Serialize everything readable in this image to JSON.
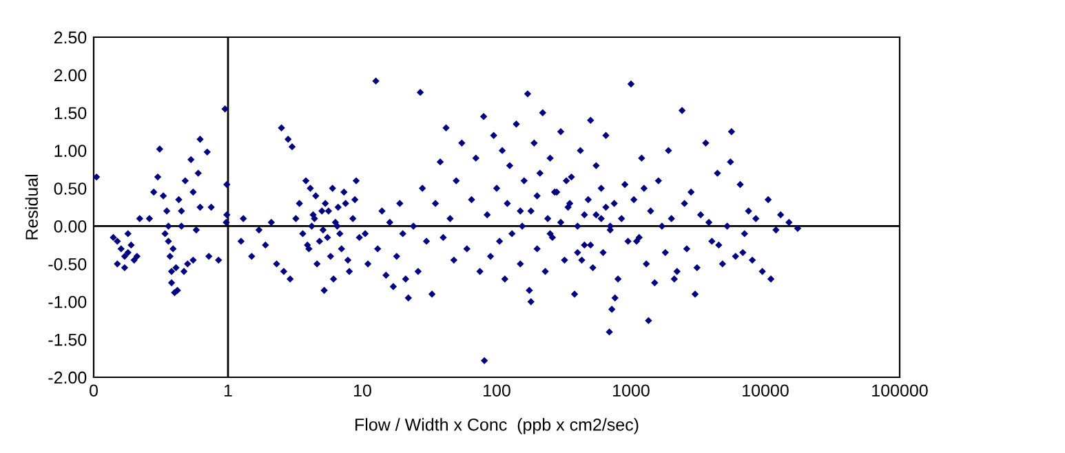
{
  "chart_data": {
    "type": "scatter",
    "xlabel": "Flow / Width x Conc  (ppb x cm2/sec)",
    "ylabel": "Residual",
    "log": "x",
    "xlim": [
      0.1,
      100000
    ],
    "xticks": [
      {
        "value": 0.1,
        "label": "0"
      },
      1,
      10,
      100,
      1000,
      10000,
      100000
    ],
    "ylim": [
      -2.0,
      2.5
    ],
    "yticks": [
      {
        "value": -2.0,
        "label": "-2.00"
      },
      {
        "value": -1.5,
        "label": "-1.50"
      },
      {
        "value": -1.0,
        "label": "-1.00"
      },
      {
        "value": -0.5,
        "label": "-0.50"
      },
      {
        "value": 0.0,
        "label": "0.00"
      },
      {
        "value": 0.5,
        "label": "0.50"
      },
      {
        "value": 1.0,
        "label": "1.00"
      },
      {
        "value": 1.5,
        "label": "1.50"
      },
      {
        "value": 2.0,
        "label": "2.00"
      },
      {
        "value": 2.5,
        "label": "2.50"
      }
    ],
    "grid": false,
    "legend": false,
    "marker": "diamond",
    "ref_lines": [
      {
        "axis": "x",
        "value": 1,
        "color": "#000000"
      },
      {
        "axis": "y",
        "value": 0,
        "color": "#000000"
      }
    ],
    "series": [
      {
        "color": "#000080",
        "x": [
          0.105,
          0.14,
          0.15,
          0.16,
          0.17,
          0.17,
          0.18,
          0.18,
          0.19,
          0.2,
          0.21,
          0.15,
          0.22,
          0.26,
          0.28,
          0.3,
          0.31,
          0.33,
          0.35,
          0.36,
          0.36,
          0.37,
          0.38,
          0.38,
          0.4,
          0.42,
          0.41,
          0.39,
          0.34,
          0.43,
          0.45,
          0.47,
          0.5,
          0.45,
          0.48,
          0.53,
          0.55,
          0.6,
          0.62,
          0.7,
          0.62,
          0.58,
          0.55,
          0.72,
          0.75,
          0.95,
          0.98,
          0.98,
          0.97,
          0.85,
          1.25,
          1.3,
          1.5,
          1.7,
          1.9,
          2.1,
          2.3,
          2.5,
          2.8,
          3.0,
          2.6,
          2.9,
          3.2,
          3.4,
          3.6,
          3.8,
          4.0,
          4.2,
          4.5,
          4.6,
          5.0,
          5.2,
          5.5,
          6.0,
          6.5,
          7.0,
          7.5,
          8.0,
          8.5,
          9.0,
          4.3,
          4.8,
          5.3,
          5.8,
          6.3,
          6.8,
          7.3,
          3.9,
          4.4,
          5.6,
          6.1,
          7.8,
          8.8,
          9.5,
          4.1,
          5.1,
          6.6,
          10.5,
          11,
          12.6,
          13,
          14,
          15,
          16,
          17,
          18,
          19,
          20,
          21,
          22,
          24,
          26,
          27,
          28,
          30,
          33,
          35,
          38,
          40,
          42,
          45,
          48,
          50,
          55,
          60,
          65,
          70,
          75,
          80,
          81,
          85,
          90,
          95,
          100,
          105,
          110,
          115,
          120,
          125,
          130,
          140,
          150,
          155,
          160,
          170,
          175,
          180,
          190,
          200,
          210,
          220,
          230,
          240,
          250,
          260,
          280,
          300,
          320,
          340,
          360,
          380,
          400,
          420,
          450,
          480,
          500,
          520,
          550,
          600,
          620,
          650,
          700,
          750,
          800,
          850,
          900,
          950,
          150,
          200,
          250,
          300,
          350,
          400,
          450,
          500,
          600,
          700,
          180,
          270,
          330,
          430,
          550,
          650,
          1000,
          1050,
          1100,
          1200,
          1300,
          1400,
          1500,
          1600,
          1700,
          1800,
          1900,
          2000,
          2200,
          2400,
          2600,
          2800,
          3000,
          3300,
          3600,
          4000,
          4400,
          4800,
          5200,
          5600,
          6000,
          6500,
          7000,
          7500,
          8000,
          690,
          720,
          760,
          1150,
          1250,
          1350,
          2100,
          2500,
          3100,
          3800,
          4500,
          5500,
          6800,
          8500,
          9500,
          10500,
          11000,
          12000,
          13000,
          15000,
          17400
        ],
        "values": [
          0.65,
          -0.15,
          -0.2,
          -0.3,
          -0.4,
          -0.55,
          -0.1,
          -0.35,
          -0.25,
          -0.45,
          -0.4,
          -0.5,
          0.1,
          0.1,
          0.45,
          0.65,
          1.02,
          0.4,
          0.2,
          0.0,
          -0.2,
          -0.4,
          -0.6,
          -0.75,
          -0.88,
          -0.85,
          -0.55,
          -0.3,
          -0.1,
          0.35,
          0.2,
          -0.6,
          -0.5,
          0.0,
          0.6,
          0.88,
          0.45,
          0.7,
          1.15,
          0.98,
          0.25,
          -0.05,
          -0.45,
          -0.4,
          0.25,
          1.55,
          0.55,
          0.15,
          0.05,
          -0.45,
          -0.2,
          0.1,
          -0.4,
          -0.05,
          -0.25,
          0.05,
          -0.5,
          1.3,
          1.15,
          1.05,
          -0.6,
          -0.7,
          0.1,
          0.3,
          -0.1,
          0.6,
          -0.3,
          0.0,
          0.4,
          -0.5,
          0.2,
          -0.85,
          -0.15,
          0.5,
          0.0,
          -0.3,
          0.3,
          -0.6,
          0.1,
          0.6,
          0.15,
          -0.2,
          0.3,
          -0.4,
          0.05,
          -0.1,
          0.45,
          -0.25,
          0.1,
          0.2,
          -0.7,
          -0.45,
          0.35,
          -0.15,
          0.5,
          -0.05,
          0.25,
          -0.1,
          -0.5,
          1.92,
          -0.3,
          0.2,
          -0.65,
          0.05,
          -0.8,
          -0.4,
          0.3,
          -0.1,
          -0.7,
          -0.95,
          0.0,
          -0.6,
          1.77,
          0.5,
          -0.2,
          -0.9,
          0.3,
          0.85,
          -0.15,
          1.3,
          0.1,
          -0.45,
          0.6,
          1.1,
          -0.3,
          0.35,
          0.9,
          -0.6,
          1.45,
          -1.78,
          0.15,
          -0.4,
          1.2,
          0.5,
          -0.2,
          1.0,
          -0.7,
          0.3,
          0.8,
          -0.1,
          1.35,
          -0.5,
          0.0,
          0.6,
          1.75,
          -0.85,
          0.2,
          1.1,
          -0.3,
          0.7,
          1.5,
          -0.6,
          0.1,
          0.9,
          -0.15,
          0.45,
          1.25,
          -0.45,
          0.25,
          0.65,
          -0.9,
          0.0,
          1.0,
          -0.25,
          0.35,
          1.4,
          -0.55,
          0.15,
          0.5,
          -0.35,
          1.2,
          -0.05,
          0.3,
          -0.7,
          0.1,
          0.55,
          -0.2,
          0.2,
          0.4,
          -0.1,
          0.05,
          0.3,
          -0.35,
          0.15,
          -0.25,
          0.1,
          0.0,
          -1.0,
          0.45,
          0.6,
          -0.45,
          0.8,
          0.25,
          1.88,
          0.35,
          -0.2,
          0.9,
          -0.5,
          0.2,
          -0.75,
          0.6,
          0.0,
          -0.35,
          1.0,
          0.1,
          -0.6,
          1.53,
          -0.3,
          0.45,
          -0.9,
          0.15,
          1.1,
          -0.2,
          0.7,
          -0.5,
          0.0,
          1.25,
          -0.4,
          0.55,
          -0.1,
          0.2,
          -0.45,
          -1.4,
          -1.1,
          -0.95,
          -0.15,
          0.5,
          -1.25,
          -0.7,
          0.3,
          -0.55,
          0.05,
          -0.25,
          0.85,
          -0.35,
          0.1,
          -0.6,
          0.35,
          -0.7,
          -0.05,
          0.15,
          0.05,
          -0.03
        ]
      }
    ]
  }
}
